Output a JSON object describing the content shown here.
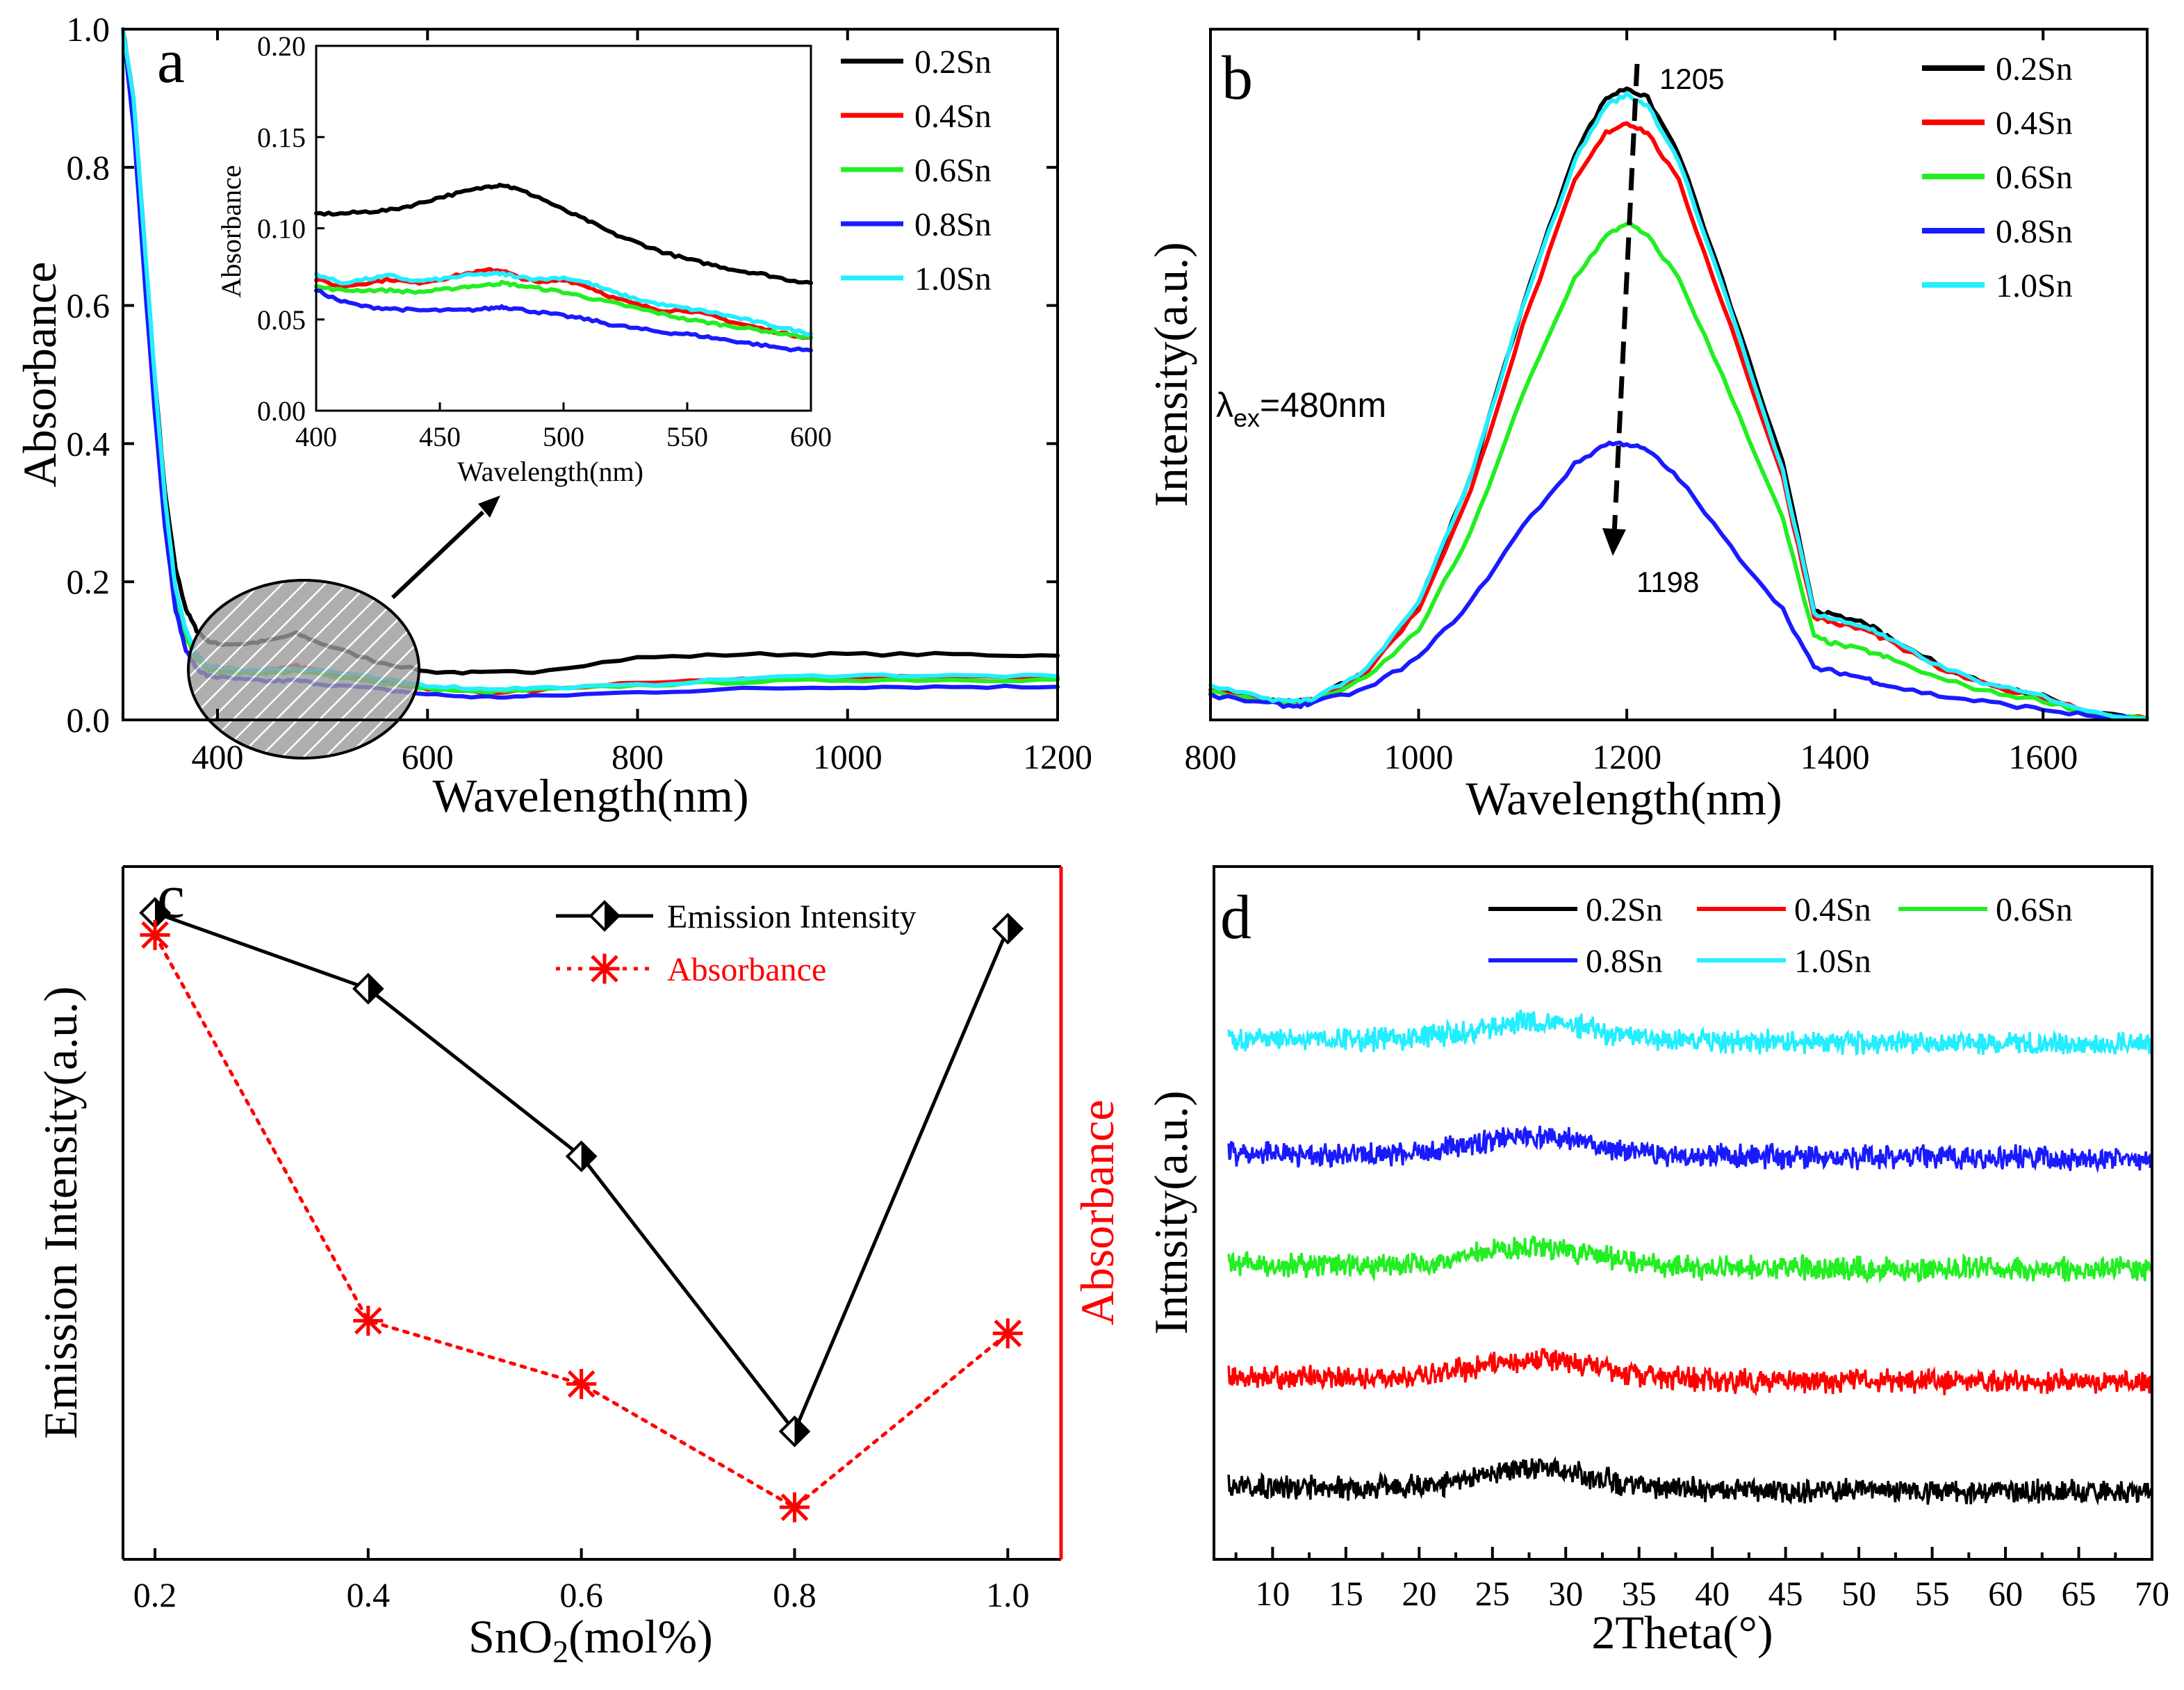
{
  "colors": {
    "0.2Sn": "#000000",
    "0.4Sn": "#ff0000",
    "0.6Sn": "#22ee22",
    "0.8Sn": "#1a1aff",
    "1.0Sn": "#22eeff",
    "red_axis": "#ff0000"
  },
  "chart_data": [
    {
      "id": "a",
      "type": "line",
      "panel_label": "a",
      "xlabel": "Wavelength(nm)",
      "ylabel": "Absorbance",
      "xlim": [
        310,
        1200
      ],
      "ylim": [
        0,
        1.0
      ],
      "xticks": [
        "400",
        "600",
        "800",
        "1000",
        "1200"
      ],
      "yticks": [
        "0.0",
        "0.2",
        "0.4",
        "0.6",
        "0.8",
        "1.0"
      ],
      "legend": [
        "0.2Sn",
        "0.4Sn",
        "0.6Sn",
        "0.8Sn",
        "1.0Sn"
      ],
      "x": [
        310,
        320,
        330,
        340,
        350,
        360,
        370,
        380,
        390,
        400,
        425,
        450,
        475,
        500,
        550,
        600,
        650,
        700,
        800,
        900,
        1000,
        1100,
        1200
      ],
      "series": [
        {
          "name": "0.2Sn",
          "values": [
            1.0,
            0.9,
            0.7,
            0.5,
            0.33,
            0.22,
            0.16,
            0.13,
            0.115,
            0.11,
            0.11,
            0.115,
            0.125,
            0.11,
            0.085,
            0.07,
            0.068,
            0.07,
            0.09,
            0.095,
            0.095,
            0.095,
            0.093
          ]
        },
        {
          "name": "0.4Sn",
          "values": [
            1.0,
            0.88,
            0.67,
            0.47,
            0.3,
            0.18,
            0.12,
            0.09,
            0.075,
            0.072,
            0.07,
            0.07,
            0.078,
            0.07,
            0.058,
            0.045,
            0.04,
            0.042,
            0.055,
            0.058,
            0.062,
            0.062,
            0.06
          ]
        },
        {
          "name": "0.6Sn",
          "values": [
            1.0,
            0.88,
            0.67,
            0.47,
            0.3,
            0.18,
            0.12,
            0.09,
            0.074,
            0.07,
            0.068,
            0.068,
            0.07,
            0.066,
            0.055,
            0.045,
            0.04,
            0.043,
            0.05,
            0.055,
            0.058,
            0.058,
            0.058
          ]
        },
        {
          "name": "0.8Sn",
          "values": [
            1.0,
            0.86,
            0.65,
            0.45,
            0.28,
            0.16,
            0.1,
            0.075,
            0.064,
            0.062,
            0.058,
            0.056,
            0.057,
            0.052,
            0.045,
            0.037,
            0.033,
            0.034,
            0.04,
            0.045,
            0.048,
            0.048,
            0.048
          ]
        },
        {
          "name": "1.0Sn",
          "values": [
            1.0,
            0.9,
            0.7,
            0.5,
            0.32,
            0.19,
            0.13,
            0.095,
            0.078,
            0.076,
            0.072,
            0.073,
            0.075,
            0.072,
            0.06,
            0.05,
            0.045,
            0.046,
            0.05,
            0.06,
            0.065,
            0.064,
            0.063
          ]
        }
      ],
      "inset": {
        "xlabel": "Wavelength(nm)",
        "ylabel": "Absorbance",
        "xlim": [
          400,
          600
        ],
        "ylim": [
          0,
          0.2
        ],
        "xticks": [
          "400",
          "450",
          "500",
          "550",
          "600"
        ],
        "yticks": [
          "0.00",
          "0.05",
          "0.10",
          "0.15",
          "0.20"
        ],
        "x": [
          400,
          410,
          420,
          430,
          440,
          450,
          460,
          470,
          475,
          480,
          490,
          500,
          510,
          520,
          530,
          540,
          550,
          560,
          570,
          580,
          590,
          600
        ],
        "series": [
          {
            "name": "0.2Sn",
            "values": [
              0.108,
              0.108,
              0.109,
              0.11,
              0.113,
              0.117,
              0.12,
              0.123,
              0.124,
              0.122,
              0.117,
              0.11,
              0.104,
              0.097,
              0.092,
              0.087,
              0.083,
              0.08,
              0.077,
              0.075,
              0.072,
              0.07
            ]
          },
          {
            "name": "0.4Sn",
            "values": [
              0.072,
              0.068,
              0.07,
              0.072,
              0.07,
              0.072,
              0.075,
              0.077,
              0.077,
              0.074,
              0.07,
              0.072,
              0.068,
              0.062,
              0.058,
              0.055,
              0.055,
              0.052,
              0.048,
              0.045,
              0.042,
              0.04
            ]
          },
          {
            "name": "0.6Sn",
            "values": [
              0.068,
              0.066,
              0.066,
              0.066,
              0.065,
              0.066,
              0.068,
              0.069,
              0.07,
              0.069,
              0.067,
              0.065,
              0.062,
              0.059,
              0.056,
              0.053,
              0.05,
              0.048,
              0.046,
              0.044,
              0.042,
              0.04
            ]
          },
          {
            "name": "0.8Sn",
            "values": [
              0.066,
              0.06,
              0.057,
              0.056,
              0.055,
              0.055,
              0.055,
              0.056,
              0.057,
              0.056,
              0.054,
              0.052,
              0.05,
              0.047,
              0.045,
              0.043,
              0.042,
              0.04,
              0.038,
              0.036,
              0.034,
              0.033
            ]
          },
          {
            "name": "1.0Sn",
            "values": [
              0.075,
              0.07,
              0.072,
              0.074,
              0.071,
              0.072,
              0.074,
              0.075,
              0.075,
              0.074,
              0.072,
              0.073,
              0.07,
              0.065,
              0.061,
              0.058,
              0.056,
              0.054,
              0.051,
              0.048,
              0.045,
              0.042
            ]
          }
        ]
      }
    },
    {
      "id": "b",
      "type": "line",
      "panel_label": "b",
      "xlabel": "Wavelength(nm)",
      "ylabel": "Intensity(a.u.)",
      "xlim": [
        800,
        1700
      ],
      "ylim": [
        0,
        1.0
      ],
      "xticks": [
        "800",
        "1000",
        "1200",
        "1400",
        "1600"
      ],
      "legend": [
        "0.2Sn",
        "0.4Sn",
        "0.6Sn",
        "0.8Sn",
        "1.0Sn"
      ],
      "annotations": {
        "excitation_symbol": "λ",
        "excitation_sub": "ex",
        "excitation_value": "=480nm",
        "peak_high": "1205",
        "peak_low": "1198"
      },
      "x": [
        800,
        850,
        880,
        900,
        950,
        1000,
        1050,
        1100,
        1150,
        1180,
        1200,
        1220,
        1250,
        1300,
        1350,
        1380,
        1400,
        1430,
        1450,
        1500,
        1550,
        1600,
        1650,
        1700
      ],
      "series": [
        {
          "name": "0.2Sn",
          "values": [
            0.045,
            0.03,
            0.025,
            0.03,
            0.07,
            0.17,
            0.35,
            0.6,
            0.82,
            0.9,
            0.915,
            0.9,
            0.82,
            0.6,
            0.37,
            0.16,
            0.15,
            0.14,
            0.12,
            0.08,
            0.05,
            0.035,
            0.01,
            0.002
          ]
        },
        {
          "name": "0.4Sn",
          "values": [
            0.045,
            0.03,
            0.025,
            0.03,
            0.07,
            0.16,
            0.33,
            0.57,
            0.78,
            0.85,
            0.865,
            0.85,
            0.78,
            0.57,
            0.35,
            0.15,
            0.14,
            0.13,
            0.115,
            0.075,
            0.048,
            0.033,
            0.01,
            0.002
          ]
        },
        {
          "name": "0.6Sn",
          "values": [
            0.04,
            0.028,
            0.022,
            0.028,
            0.06,
            0.13,
            0.27,
            0.47,
            0.64,
            0.7,
            0.72,
            0.7,
            0.64,
            0.47,
            0.29,
            0.12,
            0.11,
            0.1,
            0.09,
            0.06,
            0.04,
            0.028,
            0.008,
            0.002
          ]
        },
        {
          "name": "0.8Sn",
          "values": [
            0.035,
            0.025,
            0.02,
            0.025,
            0.045,
            0.09,
            0.17,
            0.28,
            0.37,
            0.4,
            0.4,
            0.39,
            0.35,
            0.25,
            0.16,
            0.075,
            0.07,
            0.06,
            0.05,
            0.035,
            0.025,
            0.015,
            0.005,
            0.002
          ]
        },
        {
          "name": "1.0Sn",
          "values": [
            0.048,
            0.032,
            0.026,
            0.032,
            0.072,
            0.17,
            0.35,
            0.6,
            0.81,
            0.89,
            0.905,
            0.89,
            0.81,
            0.59,
            0.36,
            0.155,
            0.145,
            0.135,
            0.118,
            0.078,
            0.05,
            0.034,
            0.01,
            0.002
          ]
        }
      ]
    },
    {
      "id": "c",
      "type": "line",
      "panel_label": "c",
      "xlabel": "SnO2(mol%)",
      "xlabel_main": "SnO",
      "xlabel_sub": "2",
      "xlabel_tail": "(mol%)",
      "ylabel": "Emission Intensity(a.u.)",
      "ylabel_right": "Absorbance",
      "xlim": [
        0.17,
        1.05
      ],
      "ylim": [
        0,
        1.0
      ],
      "xticks": [
        "0.2",
        "0.4",
        "0.6",
        "0.8",
        "1.0"
      ],
      "categories": [
        0.2,
        0.4,
        0.6,
        0.8,
        1.0
      ],
      "series": [
        {
          "name": "Emission Intensity",
          "values": [
            0.985,
            0.865,
            0.6,
            0.165,
            0.96
          ]
        },
        {
          "name": "Absorbance",
          "values": [
            0.95,
            0.34,
            0.24,
            0.045,
            0.32
          ]
        }
      ]
    },
    {
      "id": "d",
      "type": "line",
      "panel_label": "d",
      "xlabel": "2Theta(°)",
      "ylabel": "Intnsity(a.u.)",
      "xlim": [
        6,
        70
      ],
      "xticks": [
        "10",
        "15",
        "20",
        "25",
        "30",
        "35",
        "40",
        "45",
        "50",
        "55",
        "60",
        "65",
        "70"
      ],
      "legend": [
        "0.2Sn",
        "0.4Sn",
        "0.6Sn",
        "0.8Sn",
        "1.0Sn"
      ],
      "series": [
        {
          "name": "0.2Sn",
          "offset": 0.0
        },
        {
          "name": "0.4Sn",
          "offset": 1.0
        },
        {
          "name": "0.6Sn",
          "offset": 2.0
        },
        {
          "name": "0.8Sn",
          "offset": 3.0
        },
        {
          "name": "1.0Sn",
          "offset": 4.0
        }
      ]
    }
  ]
}
